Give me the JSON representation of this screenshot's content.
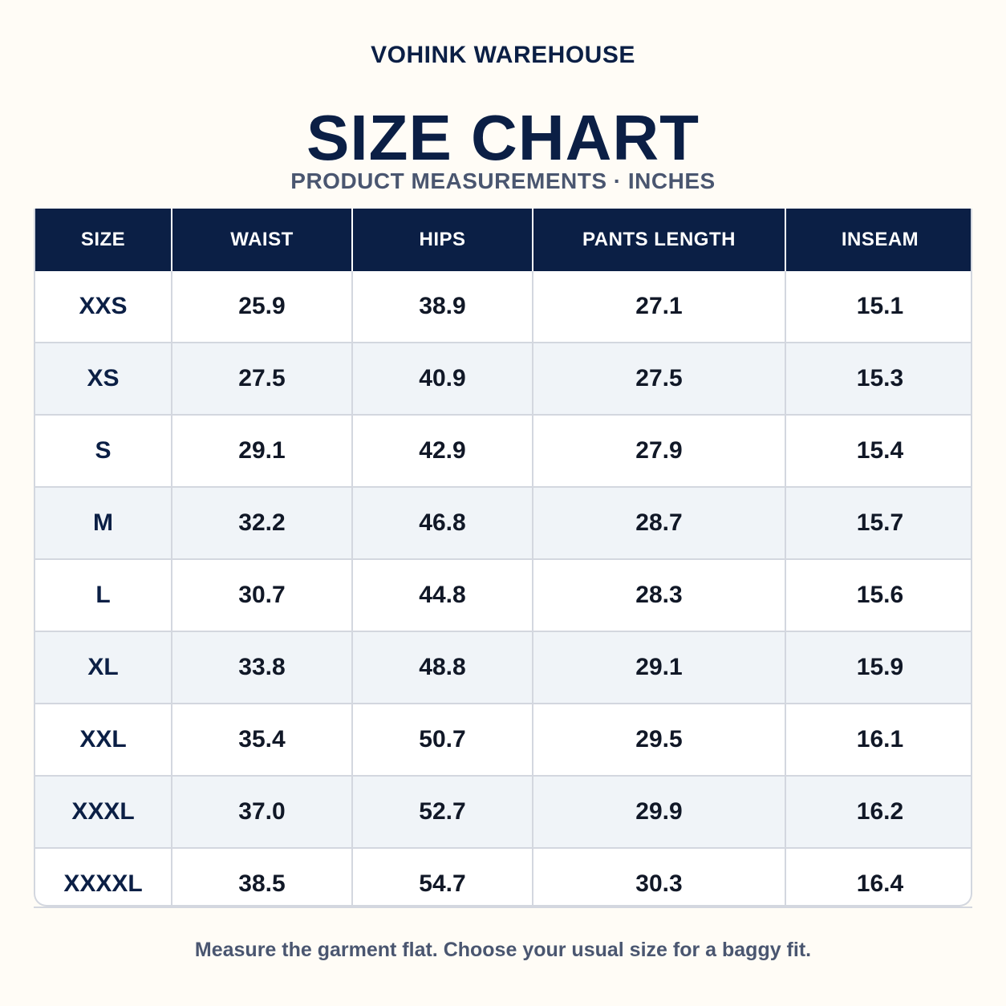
{
  "brand": "VOHINK WAREHOUSE",
  "title": "SIZE CHART",
  "subtitle": "PRODUCT MEASUREMENTS · INCHES",
  "colors": {
    "header_bg": "#0b1f45",
    "page_bg": "#fffcf6",
    "stripe": "#f0f4f8",
    "muted_text": "#4a5670"
  },
  "table": {
    "headers": [
      "SIZE",
      "WAIST",
      "HIPS",
      "PANTS LENGTH",
      "INSEAM"
    ],
    "rows": [
      [
        "XXS",
        "25.9",
        "38.9",
        "27.1",
        "15.1"
      ],
      [
        "XS",
        "27.5",
        "40.9",
        "27.5",
        "15.3"
      ],
      [
        "S",
        "29.1",
        "42.9",
        "27.9",
        "15.4"
      ],
      [
        "M",
        "32.2",
        "46.8",
        "28.7",
        "15.7"
      ],
      [
        "L",
        "30.7",
        "44.8",
        "28.3",
        "15.6"
      ],
      [
        "XL",
        "33.8",
        "48.8",
        "29.1",
        "15.9"
      ],
      [
        "XXL",
        "35.4",
        "50.7",
        "29.5",
        "16.1"
      ],
      [
        "XXXL",
        "37.0",
        "52.7",
        "29.9",
        "16.2"
      ],
      [
        "XXXXL",
        "38.5",
        "54.7",
        "30.3",
        "16.4"
      ]
    ]
  },
  "footnote": "Measure the garment flat. Choose your usual size for a baggy fit."
}
